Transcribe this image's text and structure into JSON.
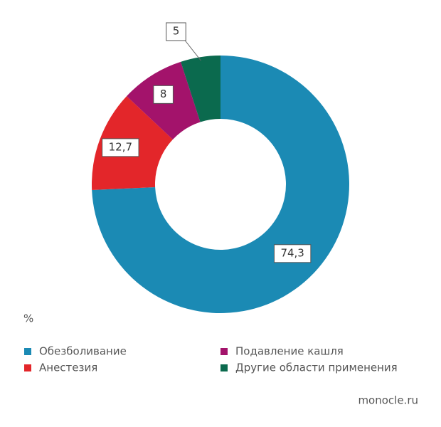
{
  "chart_data": {
    "type": "donut",
    "categories": [
      "Обезболивание",
      "Анестезия",
      "Подавление кашля",
      "Другие области применения"
    ],
    "values": [
      74.3,
      12.7,
      8,
      5
    ],
    "value_labels": [
      "74,3",
      "12,7",
      "8",
      "5"
    ],
    "colors": [
      "#1b8ab4",
      "#e3262a",
      "#a3136b",
      "#0b6a4e"
    ],
    "unit": "%",
    "source": "monocle.ru"
  }
}
